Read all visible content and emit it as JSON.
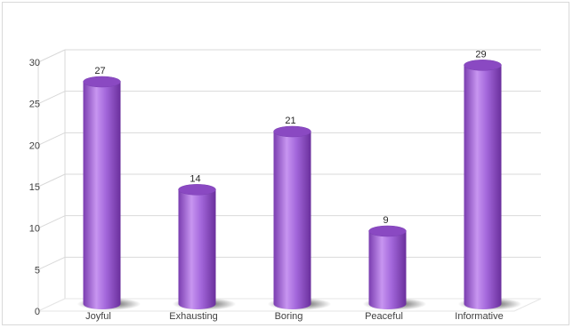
{
  "chart_data": {
    "type": "bar",
    "style": "3d-cylinder",
    "categories": [
      "Joyful",
      "Exhausting",
      "Boring",
      "Peaceful",
      "Informative"
    ],
    "values": [
      27,
      14,
      21,
      9,
      29
    ],
    "data_labels": [
      "27",
      "14",
      "21",
      "9",
      "29"
    ],
    "ylim": [
      0,
      30
    ],
    "yticks": [
      "0",
      "5",
      "10",
      "15",
      "20",
      "25",
      "30"
    ],
    "title": "",
    "xlabel": "",
    "ylabel": "",
    "grid": true,
    "legend": "none",
    "colors": {
      "bar": "#9b59d0",
      "bar_light": "#c795f0",
      "bar_dark": "#6a2f9c",
      "bar_top": "#8a49c2",
      "grid": "#d9d9d9",
      "floor": "#e6e6e6",
      "shadow": "#4a4a4a"
    }
  }
}
